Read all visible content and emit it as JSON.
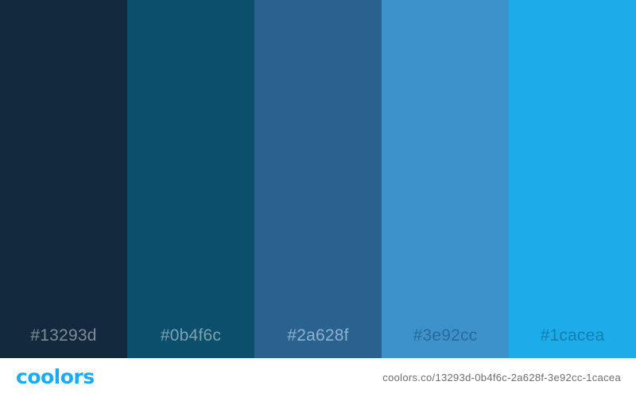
{
  "swatches": [
    {
      "hex": "#13293d",
      "label": "#13293d",
      "label_color": "#7f8b96"
    },
    {
      "hex": "#0b4f6c",
      "label": "#0b4f6c",
      "label_color": "#7fa0b0"
    },
    {
      "hex": "#2a628f",
      "label": "#2a628f",
      "label_color": "#8fb2cc"
    },
    {
      "hex": "#3e92cc",
      "label": "#3e92cc",
      "label_color": "#2a6a9a"
    },
    {
      "hex": "#1cacea",
      "label": "#1cacea",
      "label_color": "#137fae"
    }
  ],
  "footer": {
    "brand": "coolors",
    "brand_color": "#1eaaf1",
    "url": "coolors.co/13293d-0b4f6c-2a628f-3e92cc-1cacea",
    "url_color": "#6f6f6f"
  }
}
